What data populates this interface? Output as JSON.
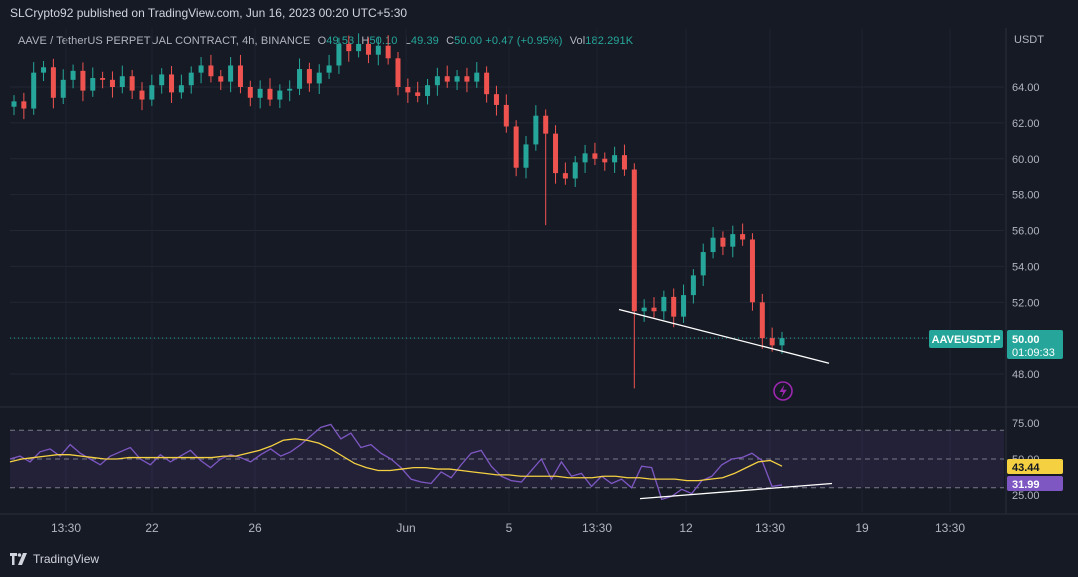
{
  "header": {
    "published_text": "SLCrypto92 published on TradingView.com, Jun 16, 2023 00:20 UTC+5:30"
  },
  "legend": {
    "symbol": "AAVE / TetherUS PERPETUAL CONTRACT, 4h, BINANCE",
    "open_label": "O",
    "open": "49.53",
    "high_label": "H",
    "high": "50.10",
    "low_label": "L",
    "low": "49.39",
    "close_label": "C",
    "close": "50.00",
    "change": "+0.47 (+0.95%)",
    "vol_label": "Vol",
    "vol": "182.291K"
  },
  "price_axis": {
    "currency": "USDT",
    "tick_labels": [
      "64.00",
      "62.00",
      "60.00",
      "58.00",
      "56.00",
      "54.00",
      "52.00",
      "50.00",
      "48.00"
    ],
    "last_price_tag": {
      "symbol": "AAVEUSDT.P",
      "price": "50.00",
      "countdown": "01:09:33"
    }
  },
  "rsi_axis": {
    "tick_labels": [
      "75.00",
      "50.00",
      "25.00"
    ],
    "ma_value": "43.44",
    "rsi_value": "31.99"
  },
  "time_axis": {
    "labels": [
      "13:30",
      "22",
      "26",
      "Jun",
      "5",
      "13:30",
      "12",
      "13:30",
      "19",
      "13:30"
    ]
  },
  "footer": {
    "brand": "TradingView"
  },
  "colors": {
    "background": "#161a25",
    "up": "#26a69a",
    "down": "#ef5350",
    "rsi_line": "#7e57c2",
    "rsi_ma": "#f5d142",
    "trendline": "#ffffff"
  },
  "chart_data": [
    {
      "type": "candlestick",
      "title": "AAVE / TetherUS PERPETUAL CONTRACT, 4h, BINANCE",
      "y_unit": "USDT",
      "ylim": [
        47,
        66.5
      ],
      "close_path": [
        63.2,
        62.8,
        64.8,
        65.1,
        63.4,
        64.4,
        64.9,
        63.8,
        64.5,
        64.4,
        64.0,
        64.6,
        63.8,
        63.3,
        64.1,
        64.7,
        63.7,
        64.1,
        64.8,
        65.2,
        64.6,
        64.3,
        65.2,
        64.0,
        63.4,
        63.9,
        63.3,
        63.8,
        63.9,
        65.0,
        64.2,
        64.8,
        65.2,
        66.4,
        66.0,
        66.4,
        65.8,
        66.3,
        65.6,
        64.0,
        63.7,
        63.5,
        64.1,
        64.6,
        64.3,
        64.6,
        64.3,
        64.8,
        63.6,
        63.0,
        61.8,
        59.5,
        60.8,
        62.4,
        61.4,
        59.2,
        58.9,
        59.8,
        60.3,
        60.0,
        59.8,
        60.2,
        59.4,
        51.5,
        51.7,
        51.5,
        52.3,
        51.2,
        52.4,
        53.5,
        54.8,
        55.6,
        55.1,
        55.8,
        55.5,
        52.0,
        50.0,
        49.6,
        50.0
      ],
      "notable_points": [
        {
          "label": "wick low",
          "value": 47.2
        },
        {
          "label": "local high",
          "value": 66.4
        },
        {
          "label": "last close",
          "value": 50.0
        }
      ],
      "trendline": {
        "from": 51.6,
        "to": 48.6,
        "direction": "descending"
      },
      "grid": true
    },
    {
      "type": "line",
      "title": "RSI",
      "ylim": [
        18,
        82
      ],
      "reference_levels": [
        70,
        50,
        30
      ],
      "series": [
        {
          "values": [
            50,
            52,
            48,
            55,
            57,
            52,
            60,
            54,
            50,
            46,
            52,
            55,
            58,
            50,
            46,
            53,
            48,
            52,
            56,
            49,
            44,
            50,
            53,
            51,
            48,
            53,
            57,
            52,
            55,
            60,
            66,
            72,
            74,
            64,
            68,
            58,
            60,
            54,
            50,
            44,
            36,
            34,
            33,
            41,
            37,
            46,
            54,
            56,
            45,
            38,
            35,
            34,
            42,
            50,
            36,
            48,
            38,
            40,
            31,
            38,
            33,
            36,
            30,
            45,
            44,
            22,
            24,
            29,
            26,
            35,
            38,
            46,
            50,
            51,
            54,
            49,
            31,
            32
          ]
        },
        {
          "values": [
            48,
            50,
            51,
            52,
            53,
            53,
            52,
            51,
            50,
            50,
            51,
            51,
            51,
            51,
            51,
            51,
            51,
            51,
            52,
            52,
            54,
            56,
            59,
            63,
            64,
            63,
            61,
            57,
            52,
            47,
            44,
            42,
            42,
            43,
            44,
            44,
            43,
            43,
            42,
            41,
            40,
            39,
            39,
            38,
            38,
            38,
            38,
            37,
            37,
            37,
            38,
            38,
            37,
            37,
            36,
            36,
            36,
            35,
            35,
            36,
            37,
            40,
            44,
            48,
            49,
            45
          ]
        }
      ],
      "trendline": {
        "from": 22.5,
        "to": 33.0,
        "direction": "ascending"
      },
      "grid": true
    }
  ]
}
